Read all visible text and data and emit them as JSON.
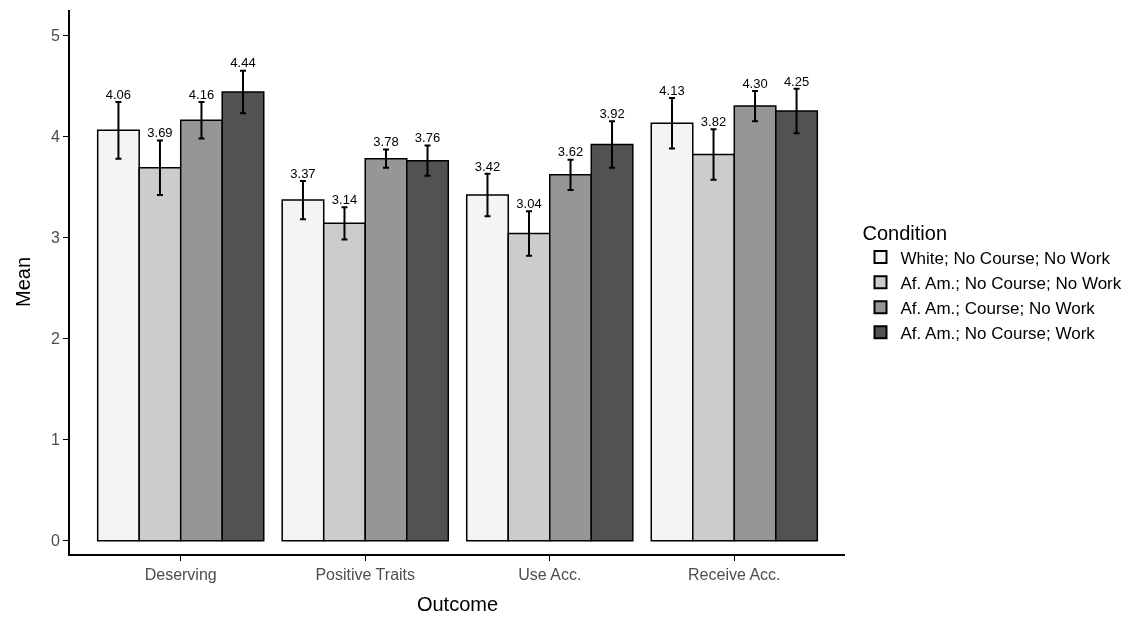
{
  "chart_data": {
    "type": "bar",
    "xlabel": "Outcome",
    "ylabel": "Mean",
    "legend_title": "Condition",
    "categories": [
      "Deserving",
      "Positive Traits",
      "Use Acc.",
      "Receive Acc."
    ],
    "series": [
      {
        "name": "White; No Course; No Work",
        "color": "#f4f4f4",
        "values": [
          4.06,
          3.37,
          3.42,
          4.13
        ],
        "errors": [
          0.28,
          0.19,
          0.21,
          0.25
        ],
        "value_labels": [
          "4.06",
          "3.37",
          "3.42",
          "4.13"
        ]
      },
      {
        "name": "Af. Am.; No Course; No Work",
        "color": "#cccccc",
        "values": [
          3.69,
          3.14,
          3.04,
          3.82
        ],
        "errors": [
          0.27,
          0.16,
          0.22,
          0.25
        ],
        "value_labels": [
          "3.69",
          "3.14",
          "3.04",
          "3.82"
        ]
      },
      {
        "name": "Af. Am.; Course; No Work",
        "color": "#969696",
        "values": [
          4.16,
          3.78,
          3.62,
          4.3
        ],
        "errors": [
          0.18,
          0.09,
          0.15,
          0.15
        ],
        "value_labels": [
          "4.16",
          "3.78",
          "3.62",
          "4.30"
        ]
      },
      {
        "name": "Af. Am.; No Course; Work",
        "color": "#525252",
        "values": [
          4.44,
          3.76,
          3.92,
          4.25
        ],
        "errors": [
          0.21,
          0.15,
          0.23,
          0.22
        ],
        "value_labels": [
          "4.44",
          "3.76",
          "3.92",
          "4.25"
        ]
      }
    ],
    "ylim": [
      -0.13,
      5.25
    ],
    "yticks": [
      0,
      1,
      2,
      3,
      4,
      5
    ],
    "legend": "right"
  }
}
